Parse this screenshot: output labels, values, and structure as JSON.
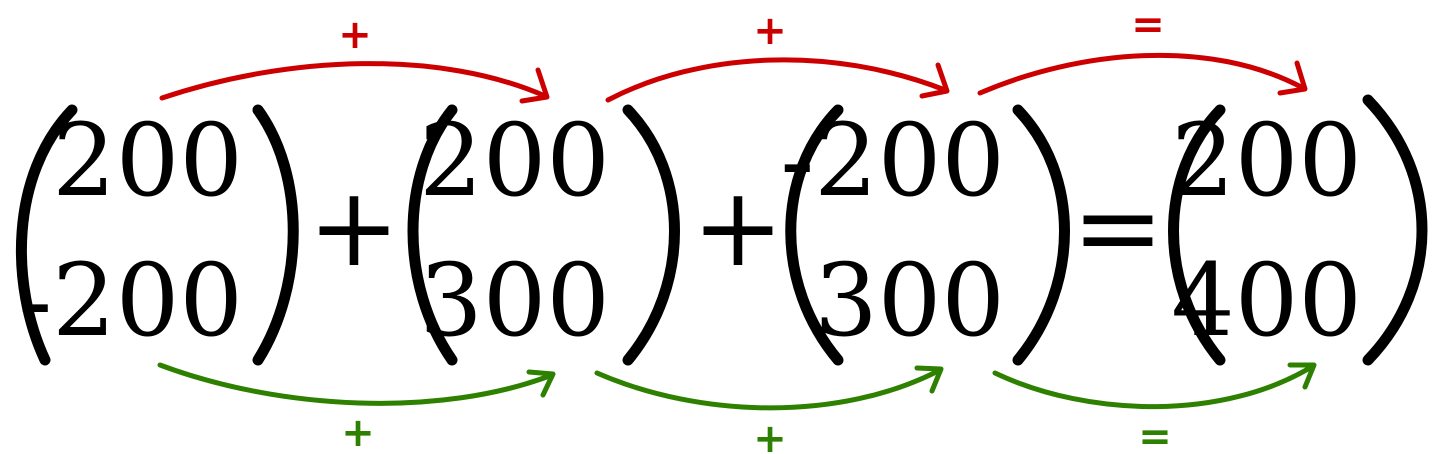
{
  "colors": {
    "top_arrows": "#cc0000",
    "bottom_arrows": "#2e8000",
    "text": "#000000"
  },
  "vectors": [
    {
      "top": "200",
      "bottom": "-200"
    },
    {
      "top": "200",
      "bottom": "300"
    },
    {
      "top": "-200",
      "bottom": "300"
    },
    {
      "top": "200",
      "bottom": "400"
    }
  ],
  "operators": [
    "+",
    "+",
    "="
  ],
  "top_arrow_labels": [
    "+",
    "+",
    "="
  ],
  "bottom_arrow_labels": [
    "+",
    "+",
    "="
  ]
}
